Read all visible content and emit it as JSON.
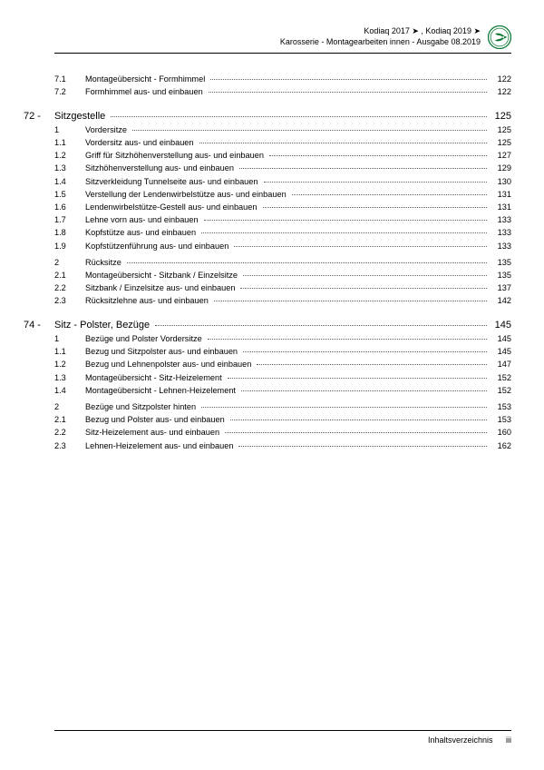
{
  "header": {
    "line1": "Kodiaq 2017 ➤ , Kodiaq 2019 ➤",
    "line2": "Karosserie - Montagearbeiten innen - Ausgabe 08.2019"
  },
  "logo": {
    "ring_color": "#0e7a36",
    "inner_color": "#0e7a36",
    "bg_color": "#ffffff"
  },
  "top_entries": [
    {
      "num": "7.1",
      "title": "Montageübersicht - Formhimmel",
      "page": "122"
    },
    {
      "num": "7.2",
      "title": "Formhimmel aus- und einbauen",
      "page": "122"
    }
  ],
  "chapters": [
    {
      "num": "72 -",
      "title": "Sitzgestelle",
      "page": "125",
      "groups": [
        {
          "entries": [
            {
              "num": "1",
              "title": "Vordersitze",
              "page": "125"
            },
            {
              "num": "1.1",
              "title": "Vordersitz aus- und einbauen",
              "page": "125"
            },
            {
              "num": "1.2",
              "title": "Griff für Sitzhöhenverstellung aus- und einbauen",
              "page": "127"
            },
            {
              "num": "1.3",
              "title": "Sitzhöhenverstellung aus- und einbauen",
              "page": "129"
            },
            {
              "num": "1.4",
              "title": "Sitzverkleidung Tunnelseite aus- und einbauen",
              "page": "130"
            },
            {
              "num": "1.5",
              "title": "Verstellung der Lendenwirbelstütze aus- und einbauen",
              "page": "131"
            },
            {
              "num": "1.6",
              "title": "Lendenwirbelstütze-Gestell aus- und einbauen",
              "page": "131"
            },
            {
              "num": "1.7",
              "title": "Lehne vorn aus- und einbauen",
              "page": "133"
            },
            {
              "num": "1.8",
              "title": "Kopfstütze aus- und einbauen",
              "page": "133"
            },
            {
              "num": "1.9",
              "title": "Kopfstützenführung aus- und einbauen",
              "page": "133"
            }
          ]
        },
        {
          "entries": [
            {
              "num": "2",
              "title": "Rücksitze",
              "page": "135"
            },
            {
              "num": "2.1",
              "title": "Montageübersicht - Sitzbank / Einzelsitze",
              "page": "135"
            },
            {
              "num": "2.2",
              "title": "Sitzbank / Einzelsitze aus- und einbauen",
              "page": "137"
            },
            {
              "num": "2.3",
              "title": "Rücksitzlehne aus- und einbauen",
              "page": "142"
            }
          ]
        }
      ]
    },
    {
      "num": "74 -",
      "title": "Sitz - Polster, Bezüge",
      "page": "145",
      "groups": [
        {
          "entries": [
            {
              "num": "1",
              "title": "Bezüge und Polster Vordersitze",
              "page": "145"
            },
            {
              "num": "1.1",
              "title": "Bezug und Sitzpolster aus- und einbauen",
              "page": "145"
            },
            {
              "num": "1.2",
              "title": "Bezug und Lehnenpolster aus- und einbauen",
              "page": "147"
            },
            {
              "num": "1.3",
              "title": "Montageübersicht - Sitz-Heizelement",
              "page": "152"
            },
            {
              "num": "1.4",
              "title": "Montageübersicht - Lehnen-Heizelement",
              "page": "152"
            }
          ]
        },
        {
          "entries": [
            {
              "num": "2",
              "title": "Bezüge und Sitzpolster hinten",
              "page": "153"
            },
            {
              "num": "2.1",
              "title": "Bezug und Polster aus- und einbauen",
              "page": "153"
            },
            {
              "num": "2.2",
              "title": "Sitz-Heizelement aus- und einbauen",
              "page": "160"
            },
            {
              "num": "2.3",
              "title": "Lehnen-Heizelement aus- und einbauen",
              "page": "162"
            }
          ]
        }
      ]
    }
  ],
  "footer": {
    "label": "Inhaltsverzeichnis",
    "pagenum": "iii"
  }
}
